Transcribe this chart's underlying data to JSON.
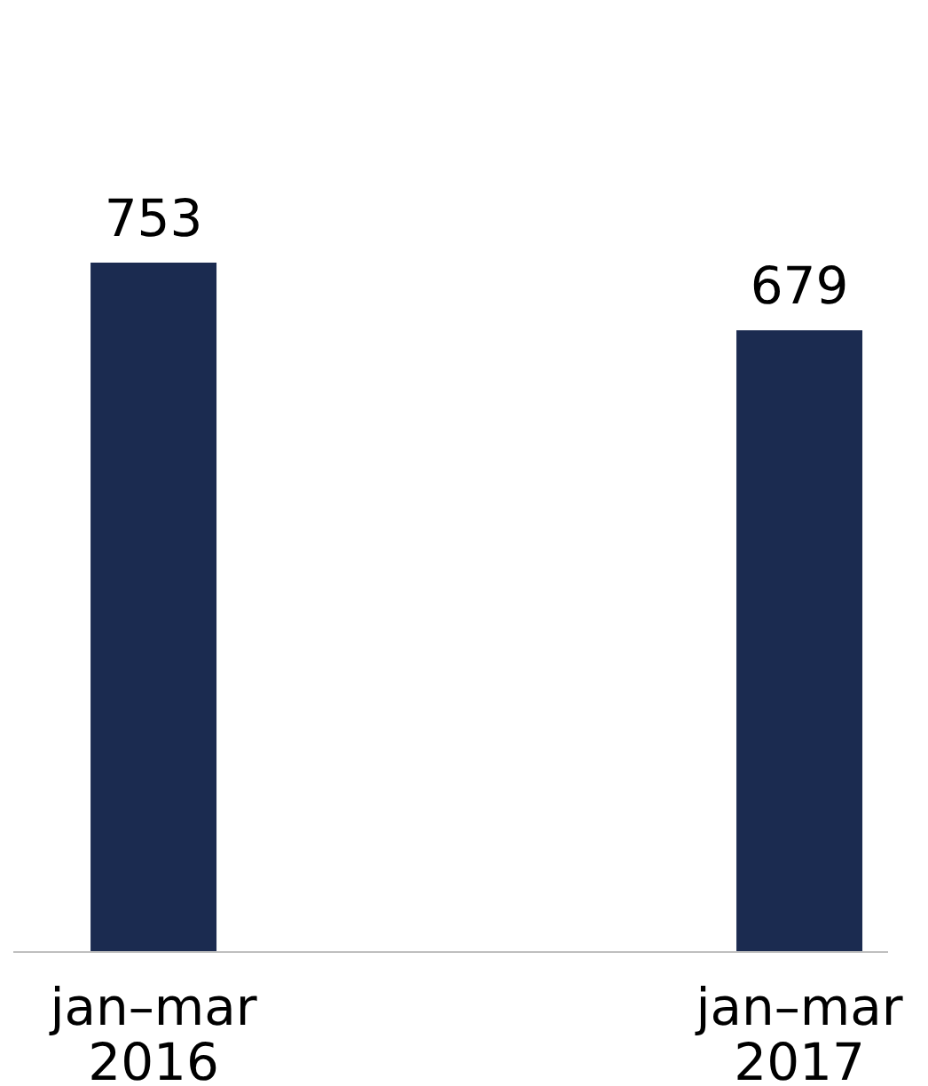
{
  "chart_data": {
    "type": "bar",
    "categories": [
      "jan–mar 2016",
      "jan–mar 2017"
    ],
    "values": [
      753,
      679
    ],
    "color": "#1b2b50",
    "data_labels": true
  }
}
